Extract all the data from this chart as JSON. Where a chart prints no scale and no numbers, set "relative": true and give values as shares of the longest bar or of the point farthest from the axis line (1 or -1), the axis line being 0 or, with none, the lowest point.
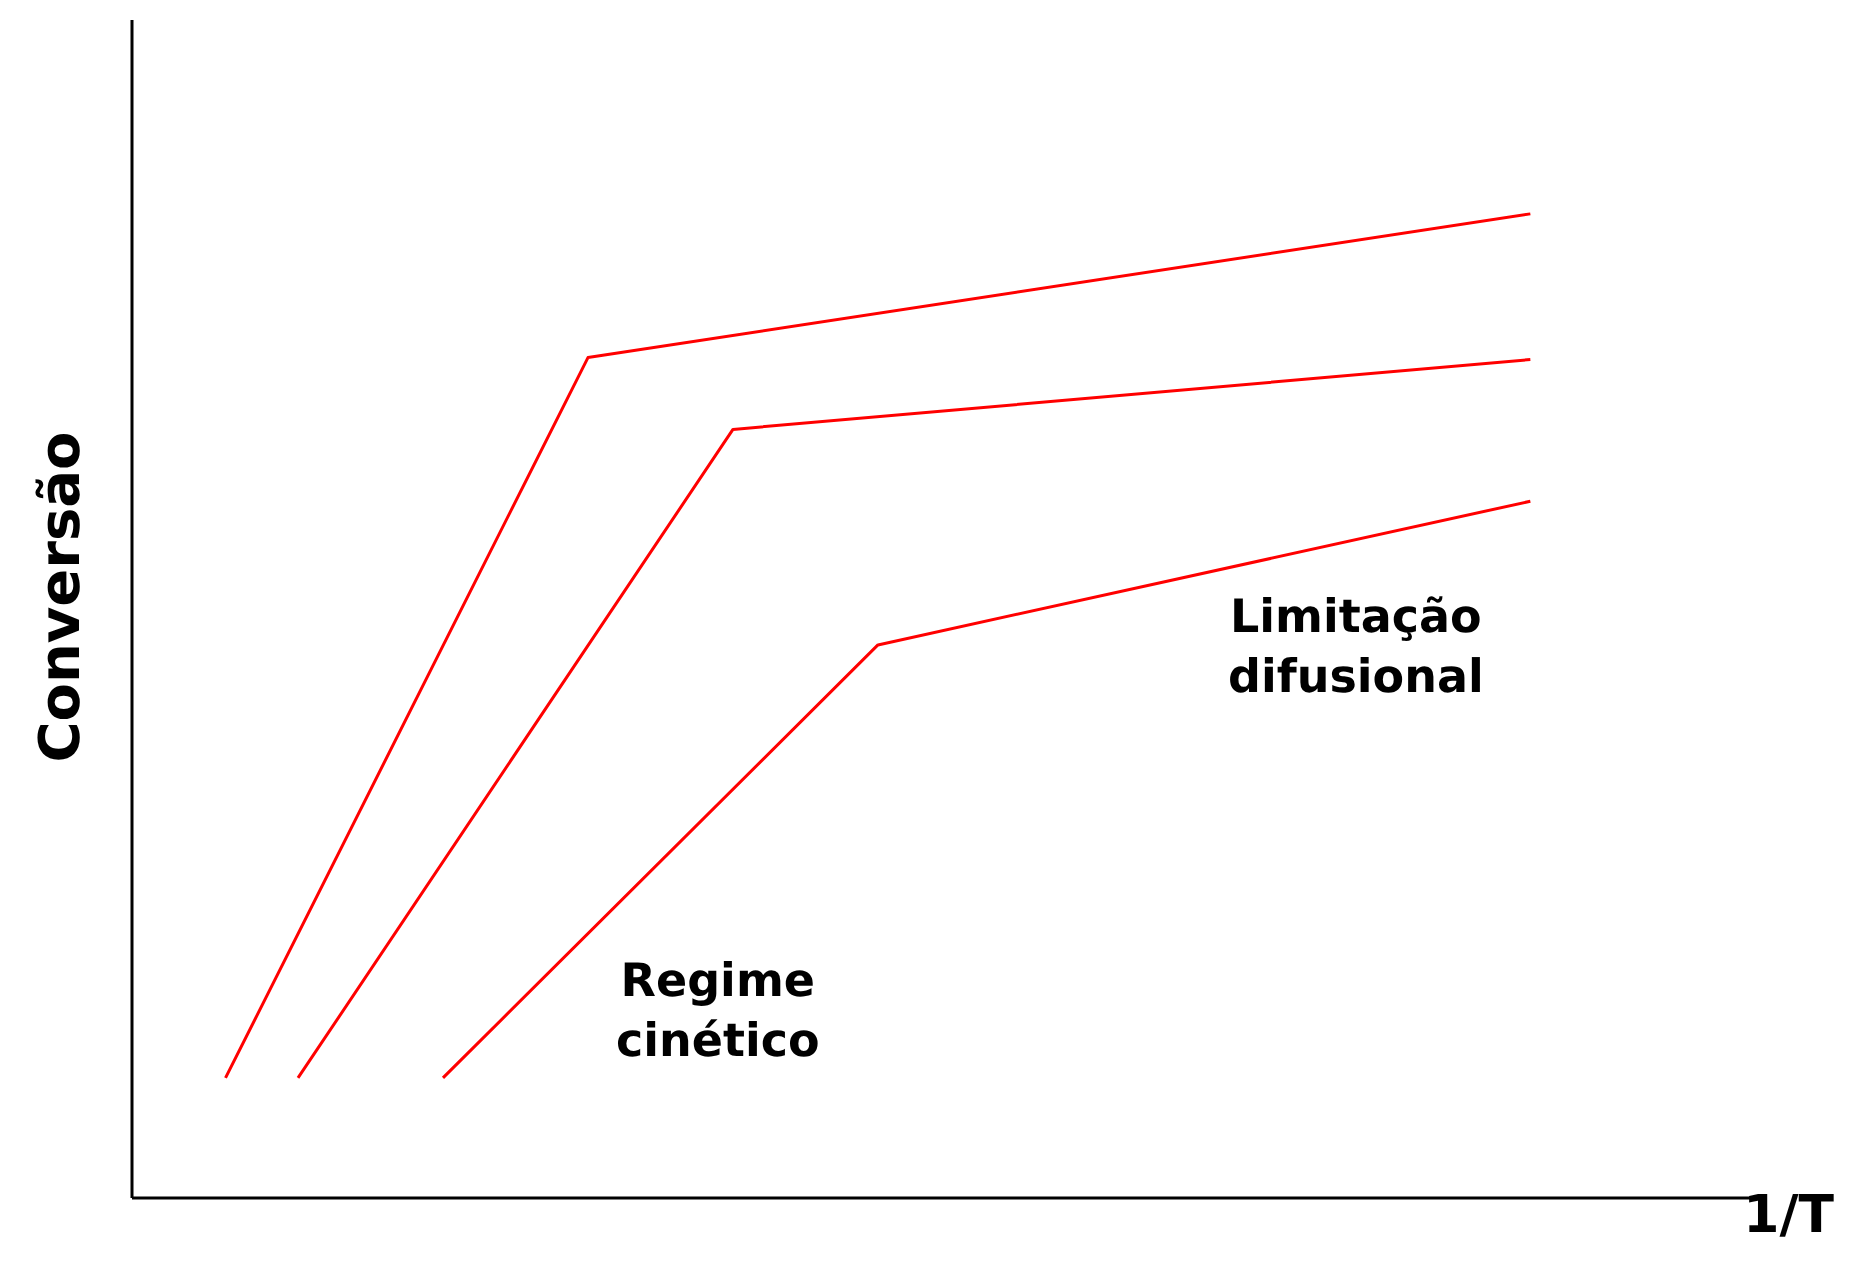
{
  "chart_data": {
    "type": "line",
    "relative": true,
    "xlabel": "1/T",
    "ylabel": "Conversão",
    "grid": false,
    "marker": "none",
    "line_style": "solid",
    "annotations": [
      "Regime\ncinético",
      "Limitação\ndifusional"
    ],
    "categories": [
      null,
      null,
      null,
      null,
      null,
      null,
      null,
      null,
      null,
      null,
      null,
      null,
      null,
      null,
      null,
      null,
      null,
      null,
      null
    ],
    "series": [
      {
        "color": "#ff0000",
        "values": [
          0.122,
          null,
          null,
          null,
          null,
          0.854,
          null,
          null,
          null,
          null,
          null,
          null,
          null,
          null,
          null,
          null,
          null,
          null,
          1
        ]
      },
      {
        "color": "#ff0000",
        "values": [
          null,
          0.122,
          null,
          null,
          null,
          null,
          null,
          0.781,
          null,
          null,
          null,
          null,
          null,
          null,
          null,
          null,
          null,
          null,
          0.852
        ]
      },
      {
        "color": "#ff0000",
        "values": [
          null,
          null,
          null,
          0.122,
          null,
          null,
          null,
          null,
          null,
          0.562,
          null,
          null,
          null,
          null,
          null,
          null,
          null,
          null,
          0.708
        ]
      }
    ]
  }
}
